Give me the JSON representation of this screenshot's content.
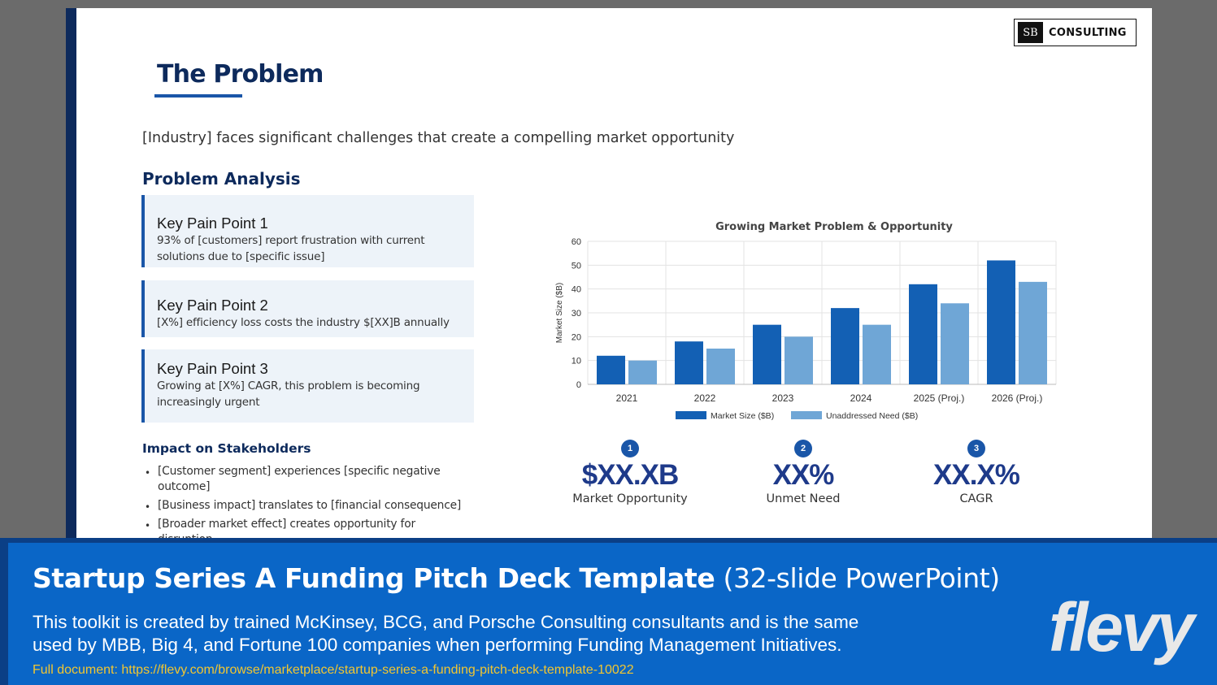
{
  "logo": {
    "mark": "SB",
    "text": "CONSULTING"
  },
  "slide": {
    "title": "The Problem",
    "subtitle": "[Industry] faces significant challenges that create a compelling market opportunity",
    "problem_heading": "Problem Analysis",
    "pain_points": [
      {
        "title": "Key Pain Point 1",
        "text": "93% of [customers] report frustration with current solutions due to [specific issue]"
      },
      {
        "title": "Key Pain Point 2",
        "text": "[X%] efficiency loss costs the industry $[XX]B annually"
      },
      {
        "title": "Key Pain Point 3",
        "text": "Growing at [X%] CAGR, this problem is becoming increasingly urgent"
      }
    ],
    "impact_heading": "Impact on Stakeholders",
    "impact_bullets": [
      "[Customer segment] experiences [specific negative outcome]",
      "[Business impact] translates to [financial consequence]",
      "[Broader market effect] creates opportunity for disruption"
    ],
    "metrics": [
      {
        "num": "1",
        "value": "$XX.XB",
        "label": "Market Opportunity"
      },
      {
        "num": "2",
        "value": "XX%",
        "label": "Unmet Need"
      },
      {
        "num": "3",
        "value": "XX.X%",
        "label": "CAGR"
      }
    ]
  },
  "chart_data": {
    "type": "bar",
    "title": "Growing Market Problem & Opportunity",
    "xlabel": "",
    "ylabel": "Market Size ($B)",
    "categories": [
      "2021",
      "2022",
      "2023",
      "2024",
      "2025 (Proj.)",
      "2026 (Proj.)"
    ],
    "series": [
      {
        "name": "Market Size ($B)",
        "values": [
          12,
          18,
          25,
          32,
          42,
          52
        ],
        "color": "#1360b4"
      },
      {
        "name": "Unaddressed Need ($B)",
        "values": [
          10,
          15,
          20,
          25,
          34,
          43
        ],
        "color": "#6fa6d6"
      }
    ],
    "ylim": [
      0,
      60
    ],
    "yticks": [
      0,
      10,
      20,
      30,
      40,
      50,
      60
    ],
    "grid": true,
    "legend": "bottom"
  },
  "banner": {
    "title_bold": "Startup Series A Funding Pitch Deck Template",
    "title_light": "(32-slide PowerPoint)",
    "description": "This toolkit is created by trained McKinsey, BCG, and Porsche Consulting consultants and is the same used by MBB, Big 4, and Fortune 100 companies when performing Funding Management Initiatives.",
    "url": "Full document: https://flevy.com/browse/marketplace/startup-series-a-funding-pitch-deck-template-10022",
    "brand": "flevy"
  }
}
